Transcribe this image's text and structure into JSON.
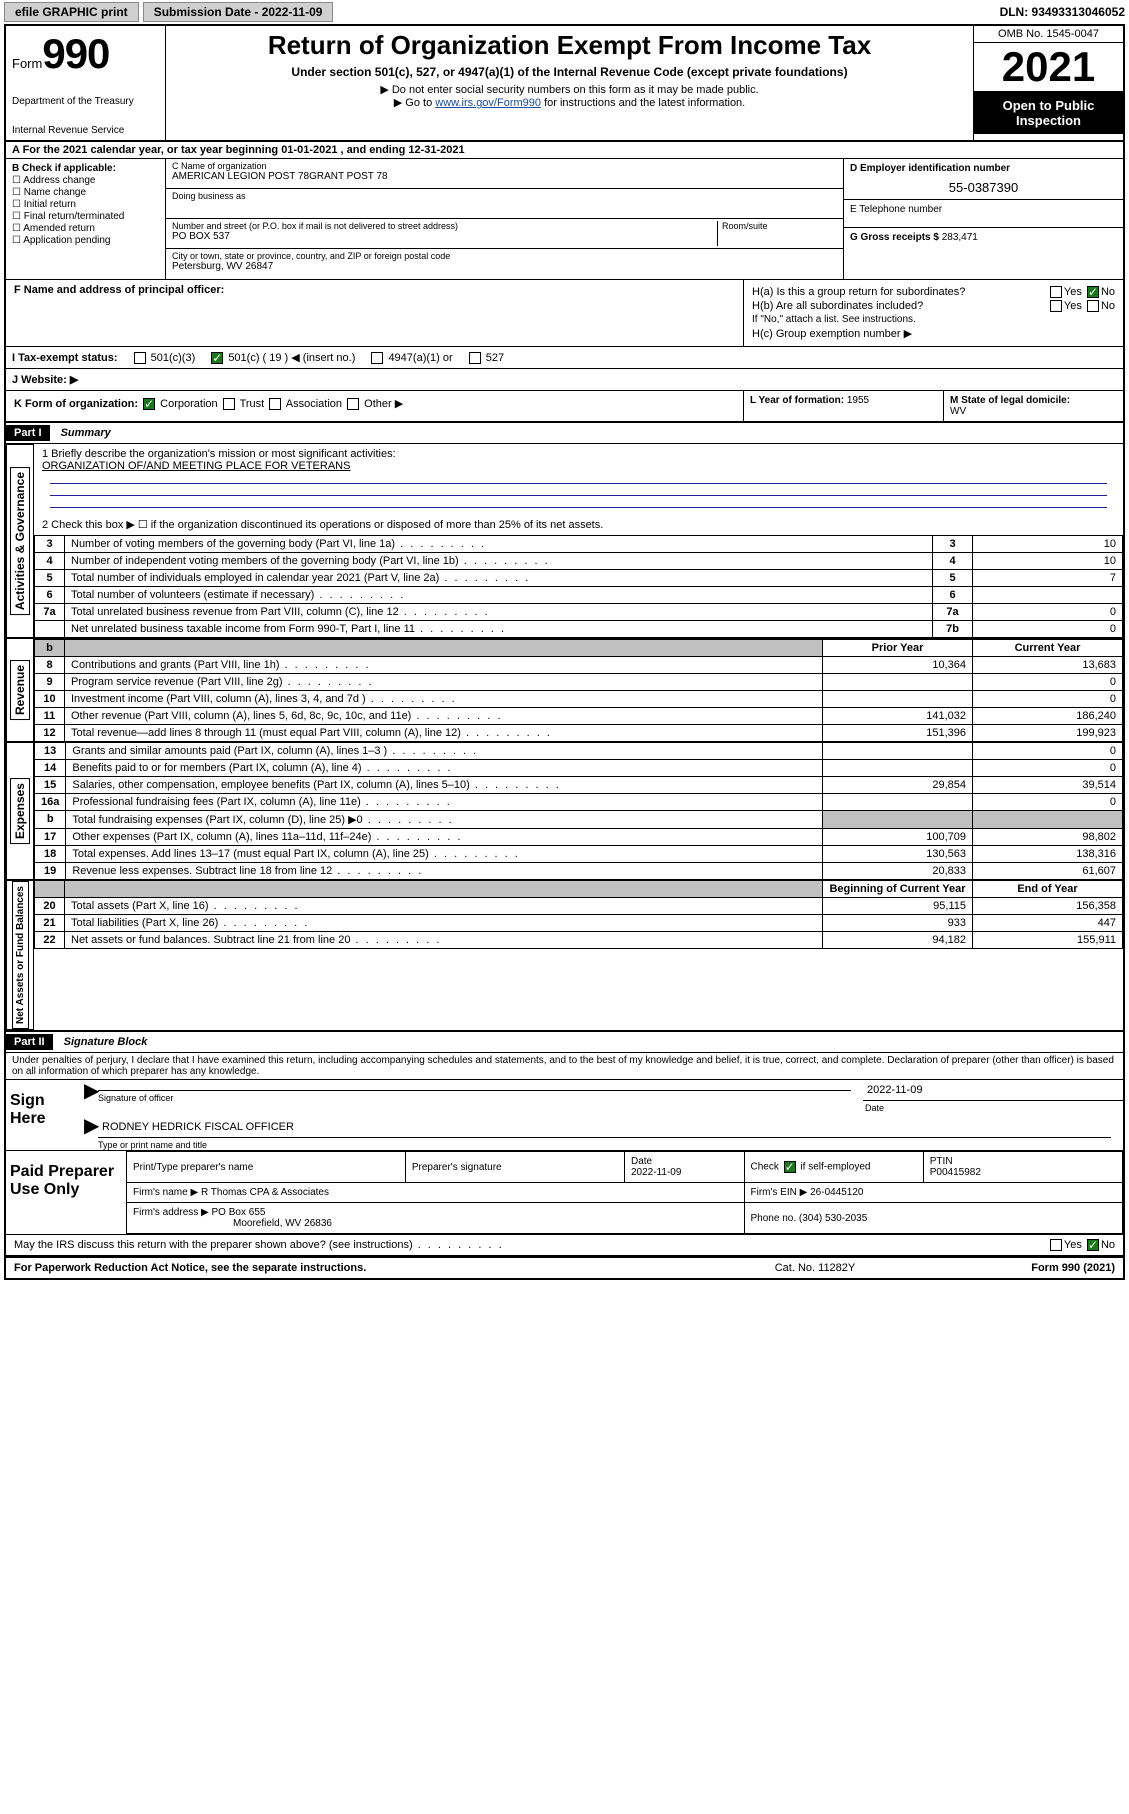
{
  "topbar": {
    "efile_label": "efile GRAPHIC print",
    "submission_label": "Submission Date - 2022-11-09",
    "dln_label": "DLN: 93493313046052"
  },
  "header": {
    "form_label": "Form",
    "form_number": "990",
    "dept": "Department of the Treasury",
    "irs": "Internal Revenue Service",
    "title": "Return of Organization Exempt From Income Tax",
    "subtitle": "Under section 501(c), 527, or 4947(a)(1) of the Internal Revenue Code (except private foundations)",
    "note1": "▶ Do not enter social security numbers on this form as it may be made public.",
    "note2_pre": "▶ Go to ",
    "note2_link": "www.irs.gov/Form990",
    "note2_post": " for instructions and the latest information.",
    "omb": "OMB No. 1545-0047",
    "year": "2021",
    "open_public": "Open to Public Inspection"
  },
  "row_a": "A For the 2021 calendar year, or tax year beginning 01-01-2021   , and ending 12-31-2021",
  "col_b": {
    "header": "B Check if applicable:",
    "items": [
      "Address change",
      "Name change",
      "Initial return",
      "Final return/terminated",
      "Amended return",
      "Application pending"
    ]
  },
  "col_c": {
    "name_lbl": "C Name of organization",
    "name_val": "AMERICAN LEGION POST 78GRANT POST 78",
    "dba_lbl": "Doing business as",
    "addr_lbl": "Number and street (or P.O. box if mail is not delivered to street address)",
    "room_lbl": "Room/suite",
    "addr_val": "PO BOX 537",
    "city_lbl": "City or town, state or province, country, and ZIP or foreign postal code",
    "city_val": "Petersburg, WV  26847"
  },
  "col_d": {
    "ein_lbl": "D Employer identification number",
    "ein_val": "55-0387390",
    "tel_lbl": "E Telephone number",
    "gross_lbl": "G Gross receipts $",
    "gross_val": "283,471"
  },
  "f_section": {
    "f_lbl": "F Name and address of principal officer:",
    "ha": "H(a)  Is this a group return for subordinates?",
    "hb": "H(b)  Are all subordinates included?",
    "hb_note": "If \"No,\" attach a list. See instructions.",
    "hc": "H(c)  Group exemption number ▶"
  },
  "tax_row": {
    "i_lbl": "I   Tax-exempt status:",
    "opts": [
      "501(c)(3)",
      "501(c) ( 19 ) ◀ (insert no.)",
      "4947(a)(1) or",
      "527"
    ],
    "j_lbl": "J   Website: ▶"
  },
  "k_row": {
    "k_lbl": "K Form of organization:",
    "k_opts": [
      "Corporation",
      "Trust",
      "Association",
      "Other ▶"
    ],
    "l_lbl": "L Year of formation:",
    "l_val": "1955",
    "m_lbl": "M State of legal domicile:",
    "m_val": "WV"
  },
  "part1": {
    "hdr": "Part I",
    "title": "Summary",
    "q1_lbl": "1  Briefly describe the organization's mission or most significant activities:",
    "q1_val": "ORGANIZATION OF/AND MEETING PLACE FOR VETERANS",
    "q2": "2    Check this box ▶ ☐  if the organization discontinued its operations or disposed of more than 25% of its net assets."
  },
  "sections": {
    "activities": "Activities & Governance",
    "revenue": "Revenue",
    "expenses": "Expenses",
    "net": "Net Assets or Fund Balances"
  },
  "gov_rows": [
    {
      "n": "3",
      "desc": "Number of voting members of the governing body (Part VI, line 1a)",
      "ref": "3",
      "val": "10"
    },
    {
      "n": "4",
      "desc": "Number of independent voting members of the governing body (Part VI, line 1b)",
      "ref": "4",
      "val": "10"
    },
    {
      "n": "5",
      "desc": "Total number of individuals employed in calendar year 2021 (Part V, line 2a)",
      "ref": "5",
      "val": "7"
    },
    {
      "n": "6",
      "desc": "Total number of volunteers (estimate if necessary)",
      "ref": "6",
      "val": ""
    },
    {
      "n": "7a",
      "desc": "Total unrelated business revenue from Part VIII, column (C), line 12",
      "ref": "7a",
      "val": "0"
    },
    {
      "n": "",
      "desc": "Net unrelated business taxable income from Form 990-T, Part I, line 11",
      "ref": "7b",
      "val": "0"
    }
  ],
  "col_hdr": {
    "prior": "Prior Year",
    "curr": "Current Year"
  },
  "rev_rows": [
    {
      "n": "8",
      "desc": "Contributions and grants (Part VIII, line 1h)",
      "prior": "10,364",
      "curr": "13,683"
    },
    {
      "n": "9",
      "desc": "Program service revenue (Part VIII, line 2g)",
      "prior": "",
      "curr": "0"
    },
    {
      "n": "10",
      "desc": "Investment income (Part VIII, column (A), lines 3, 4, and 7d )",
      "prior": "",
      "curr": "0"
    },
    {
      "n": "11",
      "desc": "Other revenue (Part VIII, column (A), lines 5, 6d, 8c, 9c, 10c, and 11e)",
      "prior": "141,032",
      "curr": "186,240"
    },
    {
      "n": "12",
      "desc": "Total revenue—add lines 8 through 11 (must equal Part VIII, column (A), line 12)",
      "prior": "151,396",
      "curr": "199,923"
    }
  ],
  "exp_rows": [
    {
      "n": "13",
      "desc": "Grants and similar amounts paid (Part IX, column (A), lines 1–3 )",
      "prior": "",
      "curr": "0"
    },
    {
      "n": "14",
      "desc": "Benefits paid to or for members (Part IX, column (A), line 4)",
      "prior": "",
      "curr": "0"
    },
    {
      "n": "15",
      "desc": "Salaries, other compensation, employee benefits (Part IX, column (A), lines 5–10)",
      "prior": "29,854",
      "curr": "39,514"
    },
    {
      "n": "16a",
      "desc": "Professional fundraising fees (Part IX, column (A), line 11e)",
      "prior": "",
      "curr": "0"
    },
    {
      "n": "b",
      "desc": "Total fundraising expenses (Part IX, column (D), line 25) ▶0",
      "prior": "grey",
      "curr": "grey"
    },
    {
      "n": "17",
      "desc": "Other expenses (Part IX, column (A), lines 11a–11d, 11f–24e)",
      "prior": "100,709",
      "curr": "98,802"
    },
    {
      "n": "18",
      "desc": "Total expenses. Add lines 13–17 (must equal Part IX, column (A), line 25)",
      "prior": "130,563",
      "curr": "138,316"
    },
    {
      "n": "19",
      "desc": "Revenue less expenses. Subtract line 18 from line 12",
      "prior": "20,833",
      "curr": "61,607"
    }
  ],
  "net_hdr": {
    "begin": "Beginning of Current Year",
    "end": "End of Year"
  },
  "net_rows": [
    {
      "n": "20",
      "desc": "Total assets (Part X, line 16)",
      "prior": "95,115",
      "curr": "156,358"
    },
    {
      "n": "21",
      "desc": "Total liabilities (Part X, line 26)",
      "prior": "933",
      "curr": "447"
    },
    {
      "n": "22",
      "desc": "Net assets or fund balances. Subtract line 21 from line 20",
      "prior": "94,182",
      "curr": "155,911"
    }
  ],
  "part2": {
    "hdr": "Part II",
    "title": "Signature Block",
    "perjury": "Under penalties of perjury, I declare that I have examined this return, including accompanying schedules and statements, and to the best of my knowledge and belief, it is true, correct, and complete. Declaration of preparer (other than officer) is based on all information of which preparer has any knowledge."
  },
  "sign": {
    "here": "Sign Here",
    "sig_officer": "Signature of officer",
    "date": "Date",
    "date_val": "2022-11-09",
    "name_val": "RODNEY HEDRICK  FISCAL OFFICER",
    "name_lbl": "Type or print name and title"
  },
  "paid": {
    "lbl": "Paid Preparer Use Only",
    "col1": "Print/Type preparer's name",
    "col2": "Preparer's signature",
    "col3_lbl": "Date",
    "col3_val": "2022-11-09",
    "col4_lbl": "Check",
    "col4_suf": "if self-employed",
    "col5_lbl": "PTIN",
    "col5_val": "P00415982",
    "firm_name_lbl": "Firm's name    ▶",
    "firm_name_val": "R Thomas CPA & Associates",
    "firm_ein_lbl": "Firm's EIN ▶",
    "firm_ein_val": "26-0445120",
    "firm_addr_lbl": "Firm's address ▶",
    "firm_addr_val": "PO Box 655",
    "firm_addr2": "Moorefield, WV  26836",
    "phone_lbl": "Phone no.",
    "phone_val": "(304) 530-2035"
  },
  "discuss": "May the IRS discuss this return with the preparer shown above? (see instructions)",
  "footer": {
    "paperwork": "For Paperwork Reduction Act Notice, see the separate instructions.",
    "catno": "Cat. No. 11282Y",
    "formno": "Form 990 (2021)"
  },
  "yn": {
    "yes": "Yes",
    "no": "No"
  }
}
